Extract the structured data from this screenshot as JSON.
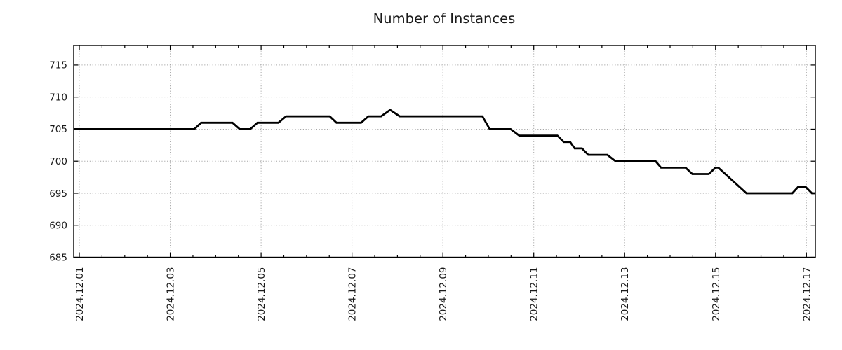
{
  "chart_data": {
    "type": "line",
    "title": "Number of Instances",
    "xlabel": "",
    "ylabel": "",
    "legend": "none",
    "grid": true,
    "x_axis": {
      "tick_labels": [
        "2024.12.01",
        "2024.12.03",
        "2024.12.05",
        "2024.12.07",
        "2024.12.09",
        "2024.12.11",
        "2024.12.13",
        "2024.12.15",
        "2024.12.17"
      ],
      "tick_days": [
        0,
        2,
        4,
        6,
        8,
        10,
        12,
        14,
        16
      ],
      "minor_tick_step_days": 0.5,
      "range_days": [
        -0.124,
        16.196
      ]
    },
    "y_axis": {
      "tick_labels": [
        "685",
        "690",
        "695",
        "700",
        "705",
        "710",
        "715"
      ],
      "tick_values": [
        685,
        690,
        695,
        700,
        705,
        710,
        715
      ],
      "gridline_values": [
        690,
        695,
        700,
        705,
        710,
        715
      ],
      "range": [
        685,
        718.05
      ]
    },
    "series": [
      {
        "name": "instances",
        "color": "#000000",
        "line_width": 2.8,
        "points_day_value": [
          [
            -0.124,
            705
          ],
          [
            2.53,
            705
          ],
          [
            2.68,
            706
          ],
          [
            3.37,
            706
          ],
          [
            3.53,
            705
          ],
          [
            3.76,
            705
          ],
          [
            3.92,
            706
          ],
          [
            4.38,
            706
          ],
          [
            4.55,
            707
          ],
          [
            5.51,
            707
          ],
          [
            5.66,
            706
          ],
          [
            6.2,
            706
          ],
          [
            6.36,
            707
          ],
          [
            6.64,
            707
          ],
          [
            6.84,
            708
          ],
          [
            7.05,
            707
          ],
          [
            8.87,
            707
          ],
          [
            9.03,
            705
          ],
          [
            9.49,
            705
          ],
          [
            9.68,
            704
          ],
          [
            10.52,
            704
          ],
          [
            10.66,
            703
          ],
          [
            10.8,
            703
          ],
          [
            10.9,
            702
          ],
          [
            11.06,
            702
          ],
          [
            11.2,
            701
          ],
          [
            11.62,
            701
          ],
          [
            11.8,
            700
          ],
          [
            12.68,
            700
          ],
          [
            12.8,
            699
          ],
          [
            13.34,
            699
          ],
          [
            13.49,
            698
          ],
          [
            13.85,
            698
          ],
          [
            14.0,
            699
          ],
          [
            14.06,
            699
          ],
          [
            14.68,
            695
          ],
          [
            15.69,
            695
          ],
          [
            15.82,
            696
          ],
          [
            15.98,
            696
          ],
          [
            16.12,
            695
          ],
          [
            16.196,
            695
          ]
        ]
      }
    ],
    "colors": {
      "background": "#ffffff",
      "text": "#1a1a1a",
      "grid": "#a6a6a6",
      "border": "#000000",
      "line": "#000000"
    }
  }
}
